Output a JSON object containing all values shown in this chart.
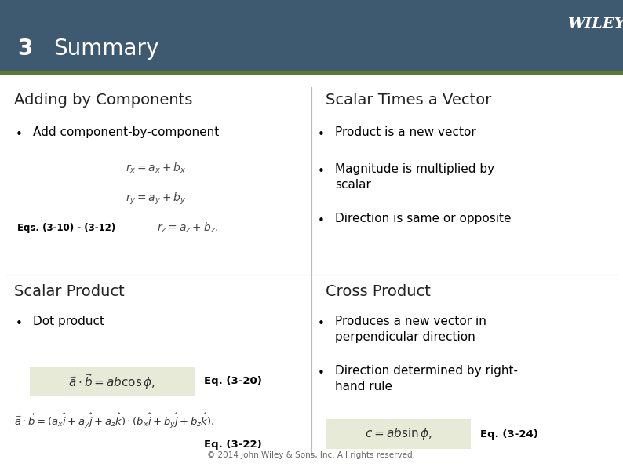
{
  "bg_header_color": "#3d5a70",
  "bg_body_color": "#ffffff",
  "header_line_color": "#5a7a30",
  "wiley_text": "WILEY",
  "wiley_color": "#ffffff",
  "chapter_num": "3",
  "chapter_title": "Summary",
  "header_text_color": "#ffffff",
  "section1_title_left": "Adding by Components",
  "section1_title_right": "Scalar Times a Vector",
  "section1_bullet1_left": "Add component-by-component",
  "section1_bullet1_right": "Product is a new vector",
  "section1_bullet2_right": "Magnitude is multiplied by\nscalar",
  "section1_bullet3_right": "Direction is same or opposite",
  "section1_eqs_label": "Eqs. (3-10) - (3-12)",
  "section2_title_left": "Scalar Product",
  "section2_title_right": "Cross Product",
  "section2_bullet1_left": "Dot product",
  "section2_eq1_label": "Eq. (3-20)",
  "section2_eq2_label": "Eq. (3-22)",
  "section2_bullet1_right": "Produces a new vector in\nperpendicular direction",
  "section2_bullet2_right": "Direction determined by right-\nhand rule",
  "section2_eq3_label": "Eq. (3-24)",
  "footer_text": "© 2014 John Wiley & Sons, Inc. All rights reserved.",
  "eq_bg_color": "#e8ead8",
  "title_fontsize": 14,
  "bullet_fontsize": 11,
  "header_fontsize": 20,
  "chapter_num_fontsize": 20
}
